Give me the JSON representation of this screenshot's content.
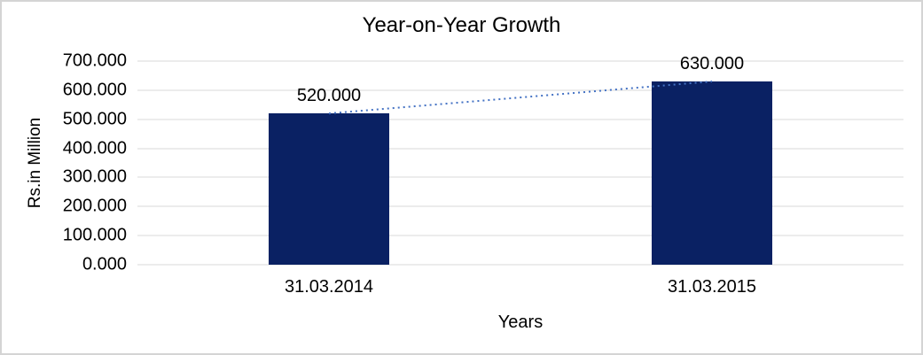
{
  "chart_data": {
    "type": "bar",
    "title": "Year-on-Year Growth",
    "xlabel": "Years",
    "ylabel": "Rs.in Million",
    "categories": [
      "31.03.2014",
      "31.03.2015"
    ],
    "values": [
      520,
      630
    ],
    "data_labels": [
      "520.000",
      "630.000"
    ],
    "series": [
      {
        "name": "Growth",
        "values": [
          520,
          630
        ]
      }
    ],
    "y_ticks": [
      {
        "value": 0,
        "label": "0.000"
      },
      {
        "value": 100,
        "label": "100.000"
      },
      {
        "value": 200,
        "label": "200.000"
      },
      {
        "value": 300,
        "label": "300.000"
      },
      {
        "value": 400,
        "label": "400.000"
      },
      {
        "value": 500,
        "label": "500.000"
      },
      {
        "value": 600,
        "label": "600.000"
      },
      {
        "value": 700,
        "label": "700.000"
      }
    ],
    "ylim": [
      0,
      700
    ],
    "grid": "horizontal",
    "legend": "none",
    "trendline": {
      "style": "dotted",
      "from": 520,
      "to": 630
    },
    "colors": {
      "bar": "#0a2163",
      "trendline": "#4472c4",
      "gridline": "#d9d9d9",
      "text": "#000000",
      "border": "#d4d4d4",
      "background": "#ffffff"
    }
  }
}
